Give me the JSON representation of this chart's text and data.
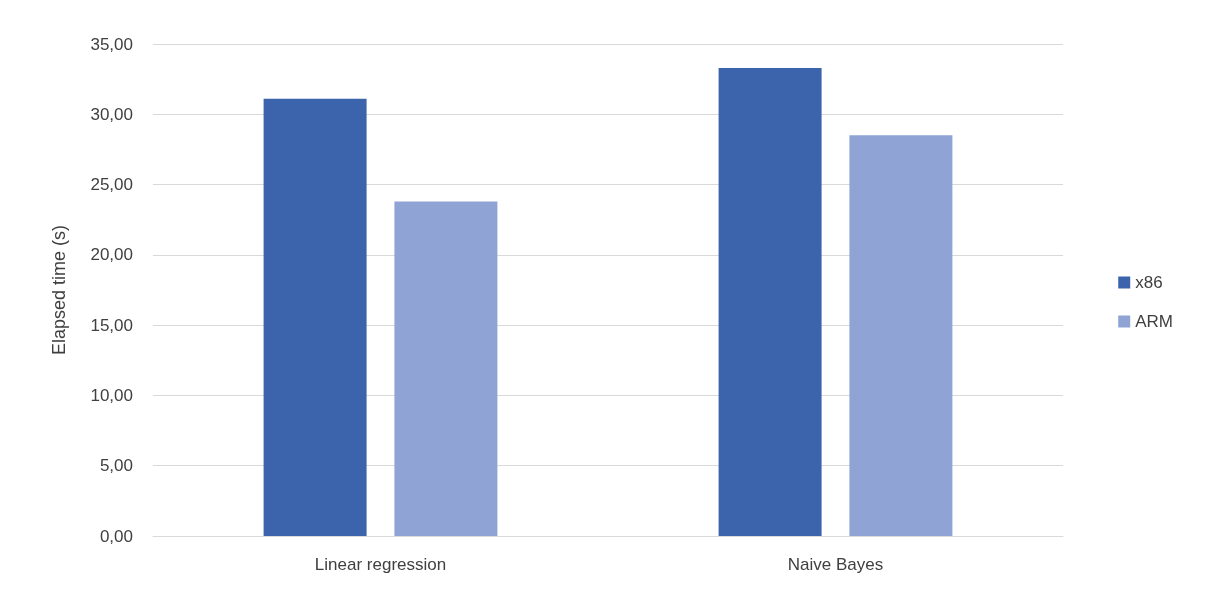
{
  "chart_data": {
    "type": "bar",
    "ylabel": "Elapsed time (s)",
    "categories": [
      "Linear regression",
      "Naive Bayes"
    ],
    "series": [
      {
        "name": "x86",
        "color": "#3c64ac",
        "values": [
          31.1,
          33.3
        ]
      },
      {
        "name": "ARM",
        "color": "#8fa4d4",
        "values": [
          23.8,
          28.5
        ]
      }
    ],
    "ylim": [
      0,
      35
    ],
    "yticks": [
      {
        "value": 0,
        "label": "0,00"
      },
      {
        "value": 5,
        "label": "5,00"
      },
      {
        "value": 10,
        "label": "10,00"
      },
      {
        "value": 15,
        "label": "15,00"
      },
      {
        "value": 20,
        "label": "20,00"
      },
      {
        "value": 25,
        "label": "25,00"
      },
      {
        "value": 30,
        "label": "30,00"
      },
      {
        "value": 35,
        "label": "35,00"
      }
    ],
    "grid": "y",
    "legend": "right"
  }
}
